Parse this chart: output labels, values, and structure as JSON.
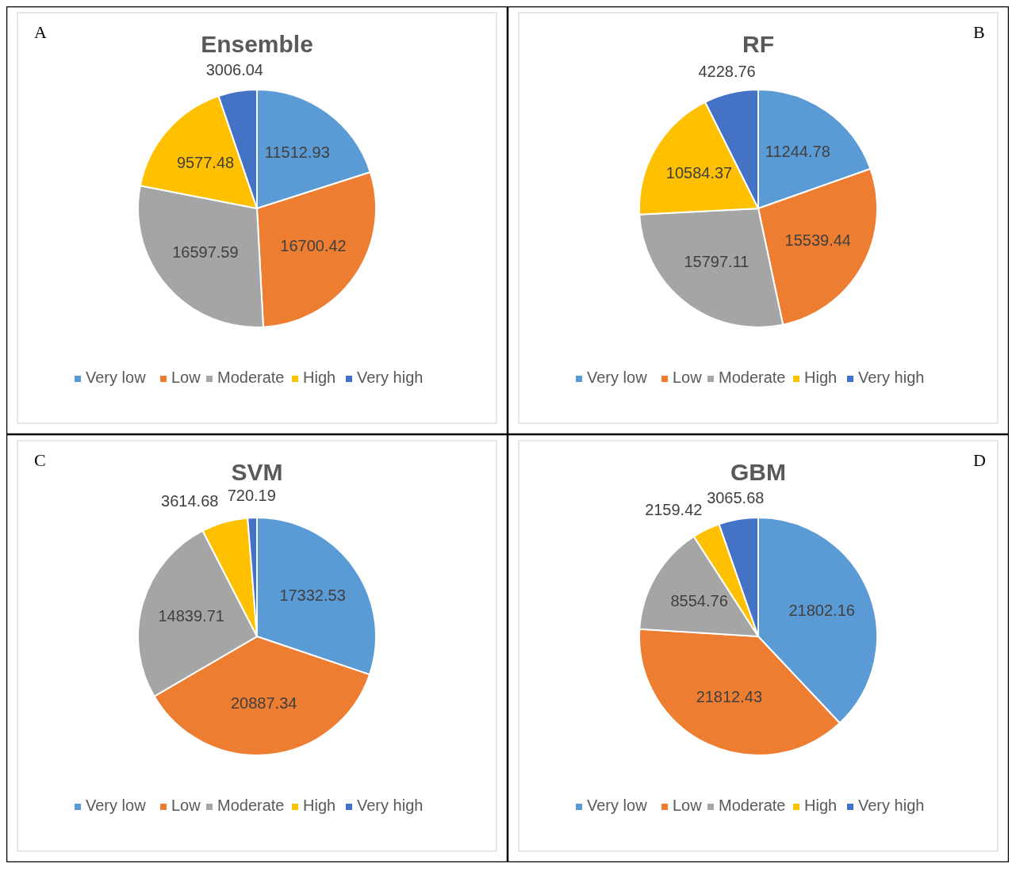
{
  "chart_data": [
    {
      "type": "pie",
      "title": "Ensemble",
      "categories": [
        "Very low",
        "Low",
        "Moderate",
        "High",
        "Very high"
      ],
      "values": [
        11512.93,
        16700.42,
        16597.59,
        9577.48,
        3006.04
      ],
      "colors": [
        "#5b9bd5",
        "#ed7d31",
        "#a5a5a5",
        "#ffc000",
        "#4472c4"
      ],
      "data_labels": true,
      "legend": "bottom",
      "annotations": [
        "A"
      ]
    },
    {
      "type": "pie",
      "title": "RF",
      "categories": [
        "Very low",
        "Low",
        "Moderate",
        "High",
        "Very high"
      ],
      "values": [
        11244.78,
        15539.44,
        15797.11,
        10584.37,
        4228.76
      ],
      "colors": [
        "#5b9bd5",
        "#ed7d31",
        "#a5a5a5",
        "#ffc000",
        "#4472c4"
      ],
      "data_labels": true,
      "legend": "bottom",
      "annotations": [
        "B"
      ]
    },
    {
      "type": "pie",
      "title": "SVM",
      "categories": [
        "Very low",
        "Low",
        "Moderate",
        "High",
        "Very high"
      ],
      "values": [
        17332.53,
        20887.34,
        14839.71,
        3614.68,
        720.19
      ],
      "colors": [
        "#5b9bd5",
        "#ed7d31",
        "#a5a5a5",
        "#ffc000",
        "#4472c4"
      ],
      "data_labels": true,
      "legend": "bottom",
      "annotations": [
        "C"
      ]
    },
    {
      "type": "pie",
      "title": "GBM",
      "categories": [
        "Very low",
        "Low",
        "Moderate",
        "High",
        "Very high"
      ],
      "values": [
        21802.16,
        21812.43,
        8554.76,
        2159.42,
        3065.68
      ],
      "colors": [
        "#5b9bd5",
        "#ed7d31",
        "#a5a5a5",
        "#ffc000",
        "#4472c4"
      ],
      "data_labels": true,
      "legend": "bottom",
      "annotations": [
        "D"
      ]
    }
  ]
}
